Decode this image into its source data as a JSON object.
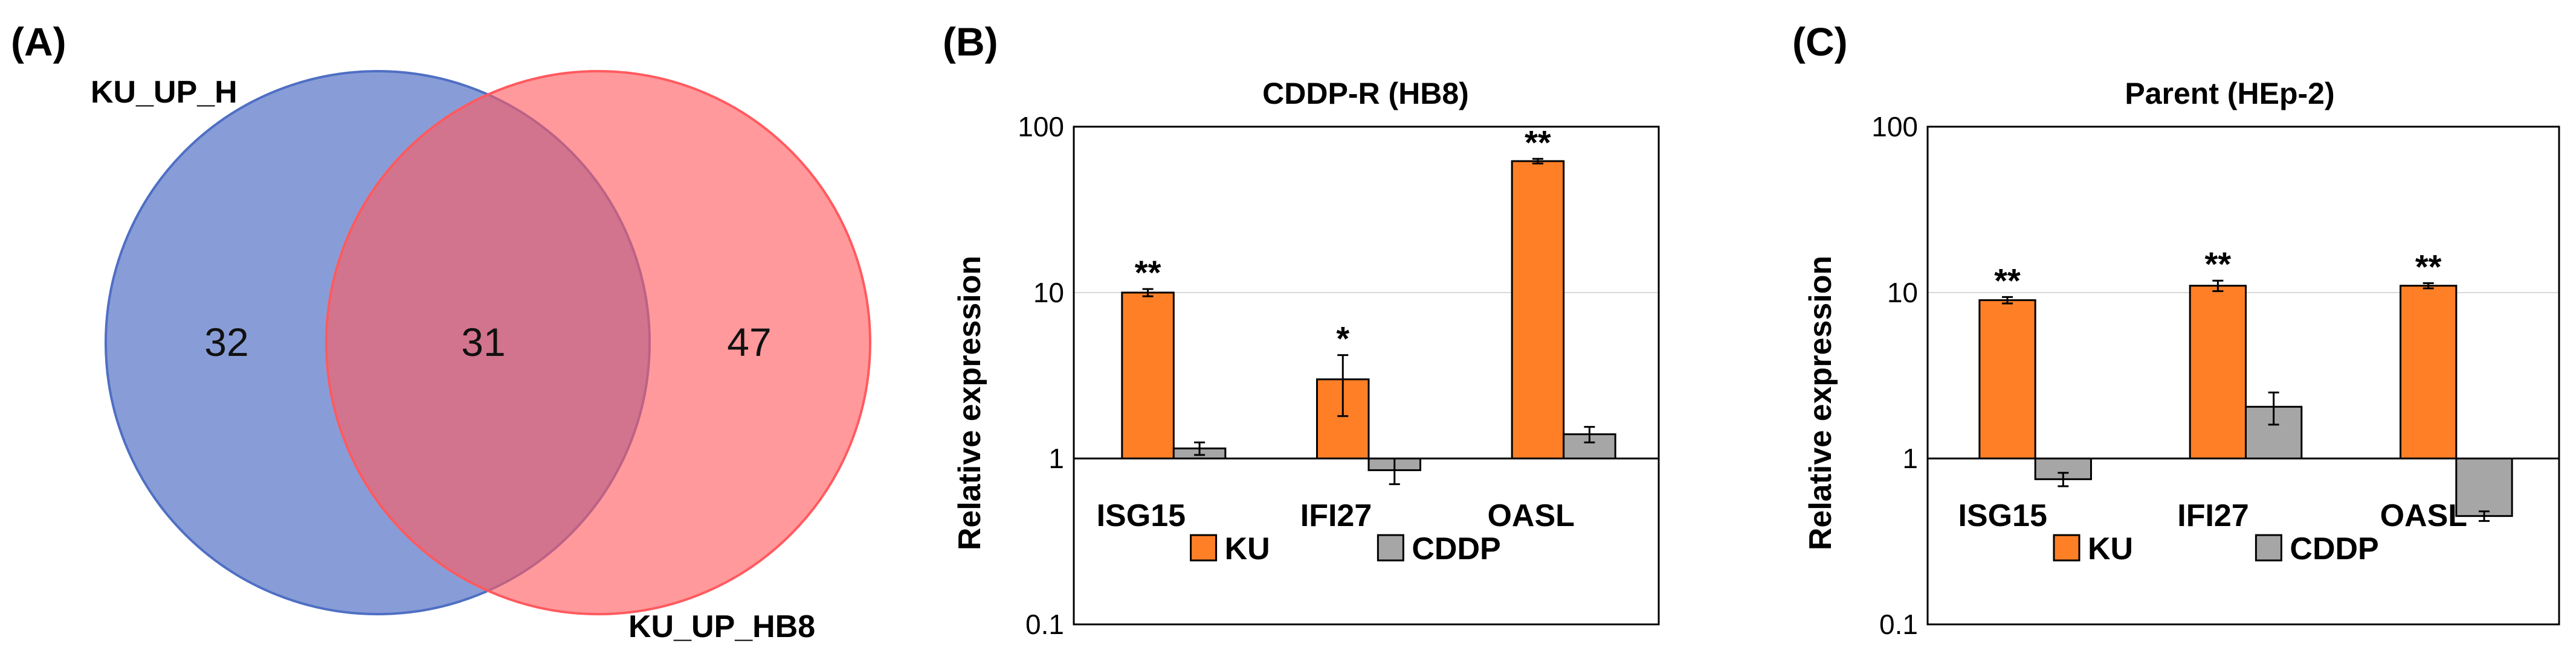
{
  "panels": {
    "a_label": "(A)",
    "b_label": "(B)",
    "c_label": "(C)"
  },
  "venn": {
    "set_left": "KU_UP_H",
    "set_right": "KU_UP_HB8",
    "left_only": "32",
    "overlap": "31",
    "right_only": "47",
    "colors": {
      "left": "#4f6fc4",
      "right": "#ff5a5f"
    }
  },
  "legend": {
    "ku": "KU",
    "cddp": "CDDP"
  },
  "colors": {
    "ku": "#ff7f27",
    "cddp": "#a6a6a6"
  },
  "chart_data": [
    {
      "type": "bar",
      "title": "CDDP-R (HB8)",
      "ylabel": "Relative expression",
      "yscale": "log",
      "ylim": [
        0.1,
        100
      ],
      "yticks": [
        "0.1",
        "1",
        "10",
        "100"
      ],
      "categories": [
        "ISG15",
        "IFI27",
        "OASL"
      ],
      "series": [
        {
          "name": "KU",
          "values": [
            10,
            3.0,
            62
          ],
          "err": [
            0.5,
            1.2,
            2
          ]
        },
        {
          "name": "CDDP",
          "values": [
            1.15,
            0.85,
            1.4
          ],
          "err": [
            0.1,
            0.15,
            0.15
          ]
        }
      ],
      "annotations": [
        "**",
        "*",
        "**"
      ],
      "legend": "bottom"
    },
    {
      "type": "bar",
      "title": "Parent (HEp-2)",
      "ylabel": "Relative expression",
      "yscale": "log",
      "ylim": [
        0.1,
        100
      ],
      "yticks": [
        "0.1",
        "1",
        "10",
        "100"
      ],
      "categories": [
        "ISG15",
        "IFI27",
        "OASL"
      ],
      "series": [
        {
          "name": "KU",
          "values": [
            9,
            11,
            11
          ],
          "err": [
            0.4,
            0.8,
            0.4
          ]
        },
        {
          "name": "CDDP",
          "values": [
            0.75,
            2.05,
            0.45
          ],
          "err": [
            0.07,
            0.45,
            0.03
          ]
        }
      ],
      "annotations": [
        "**",
        "**",
        "**"
      ],
      "legend": "bottom"
    }
  ]
}
